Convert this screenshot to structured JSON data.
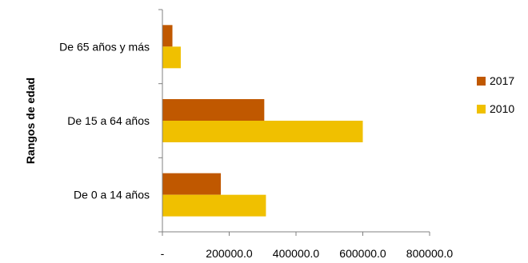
{
  "chart_data": {
    "type": "bar",
    "orientation": "horizontal",
    "title": "",
    "xlabel": "",
    "ylabel": "Rangos de edad",
    "categories": [
      "De 65 años y más",
      "De 15 a 64 años",
      "De 0 a 14 años"
    ],
    "series": [
      {
        "name": "2017",
        "color": "#C05800",
        "values": [
          30000,
          305000,
          175000
        ]
      },
      {
        "name": "2010",
        "color": "#F0C000",
        "values": [
          55000,
          600000,
          310000
        ]
      }
    ],
    "xlim": [
      0,
      800000
    ],
    "xticks": [
      0,
      200000,
      400000,
      600000,
      800000
    ],
    "xtick_labels": [
      "-",
      "200000.0",
      "400000.0",
      "600000.0",
      "800000.0"
    ],
    "grid": false,
    "legend_position": "right"
  }
}
